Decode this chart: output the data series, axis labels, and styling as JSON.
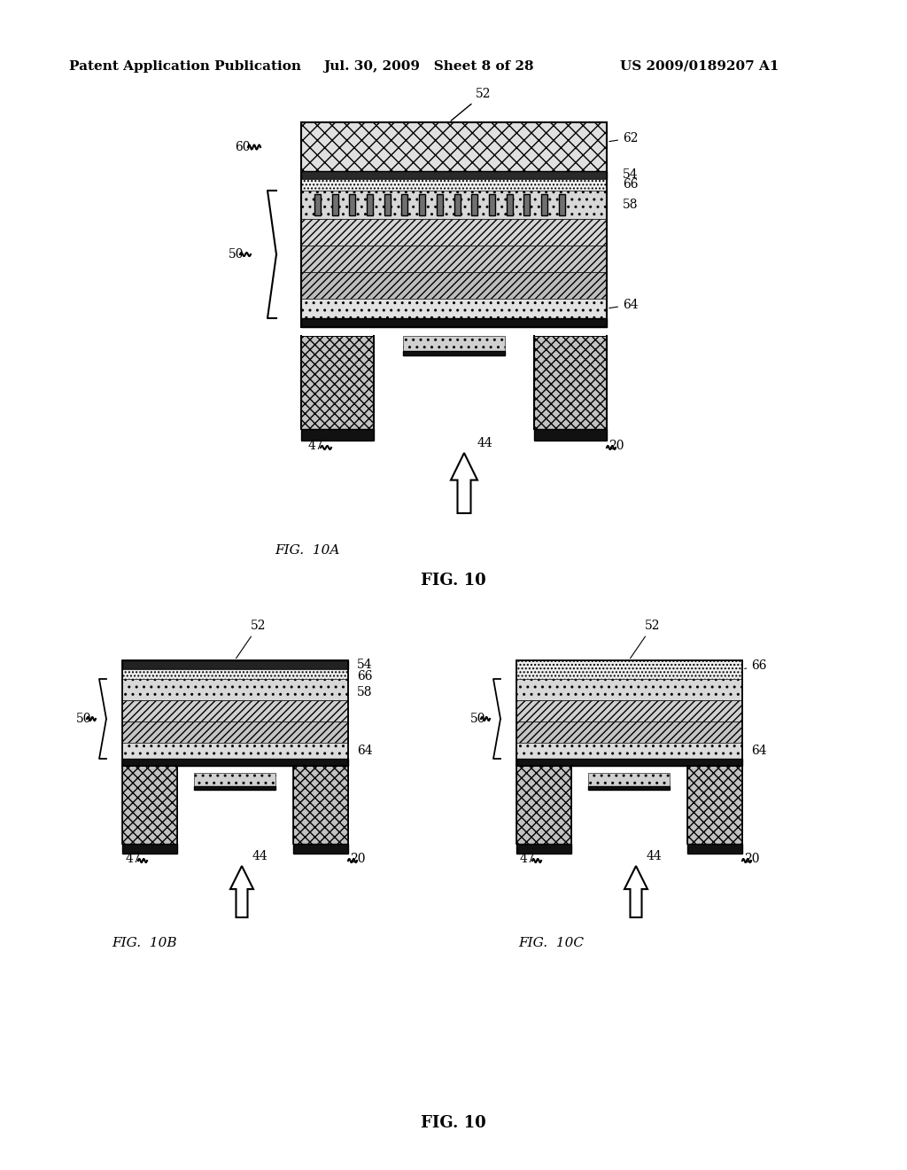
{
  "header_left": "Patent Application Publication",
  "header_mid": "Jul. 30, 2009   Sheet 8 of 28",
  "header_right": "US 2009/0189207 A1",
  "fig_caption_top": "FIG. 10",
  "fig_caption_bottom": "FIG. 10",
  "fig10a_label": "FIG. 10A",
  "fig10b_label": "FIG. 10B",
  "fig10c_label": "FIG. 10C",
  "bg_color": "#ffffff"
}
